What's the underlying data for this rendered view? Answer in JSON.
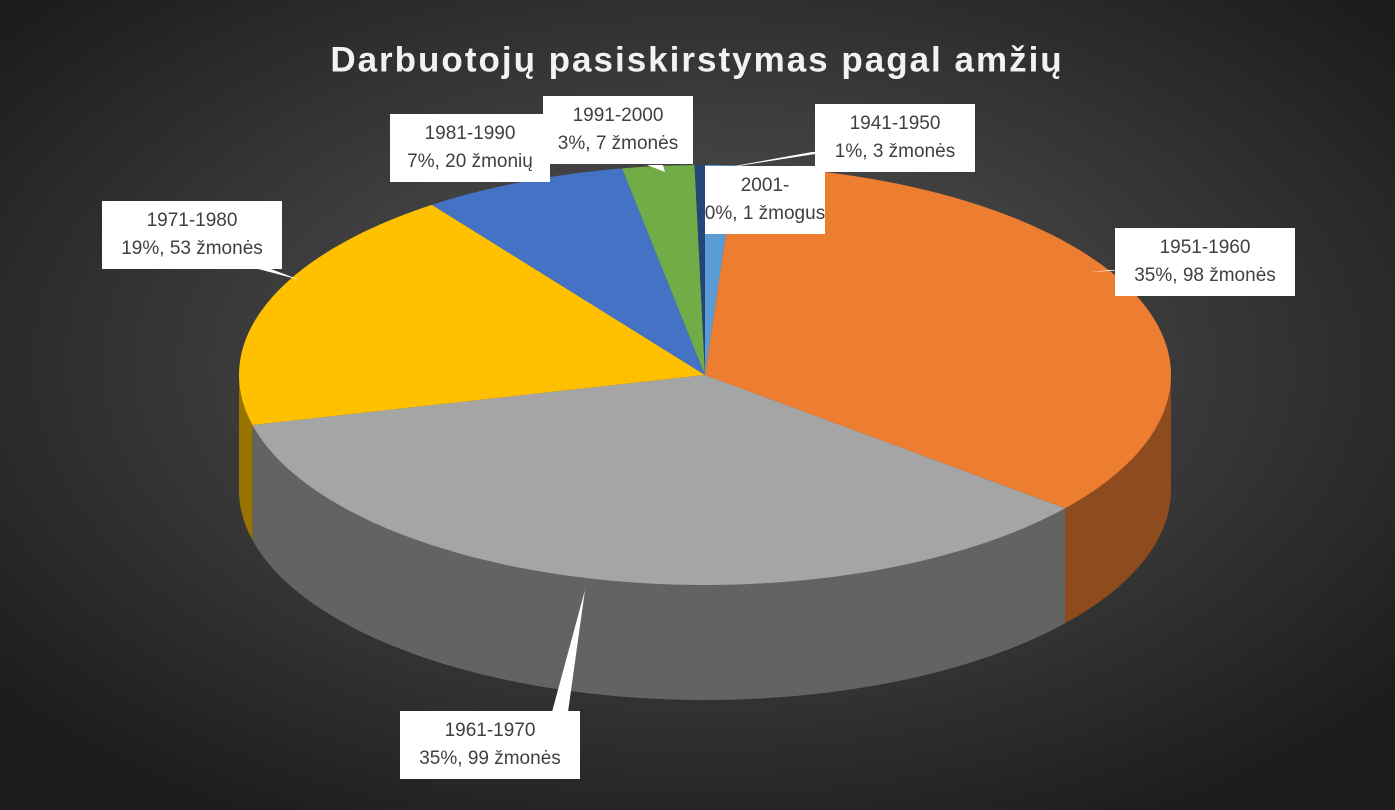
{
  "chart_data": {
    "type": "pie",
    "title": "Darbuotojų pasiskirstymas pagal amžių",
    "categories": [
      "1941-1950",
      "1951-1960",
      "1961-1970",
      "1971-1980",
      "1981-1990",
      "1991-2000",
      "2001-"
    ],
    "values": [
      3,
      98,
      99,
      53,
      20,
      7,
      1
    ],
    "value_labels": [
      "1%, 3 žmonės",
      "35%, 98 žmonės",
      "35%, 99 žmonės",
      "19%, 53 žmonės",
      "7%, 20 žmonių",
      "3%, 7 žmonės",
      "0%, 1 žmogus"
    ],
    "colors": [
      "#5b9bd5",
      "#ed7d31",
      "#a5a5a5",
      "#ffc000",
      "#4472c4",
      "#70ad47",
      "#264478"
    ]
  }
}
